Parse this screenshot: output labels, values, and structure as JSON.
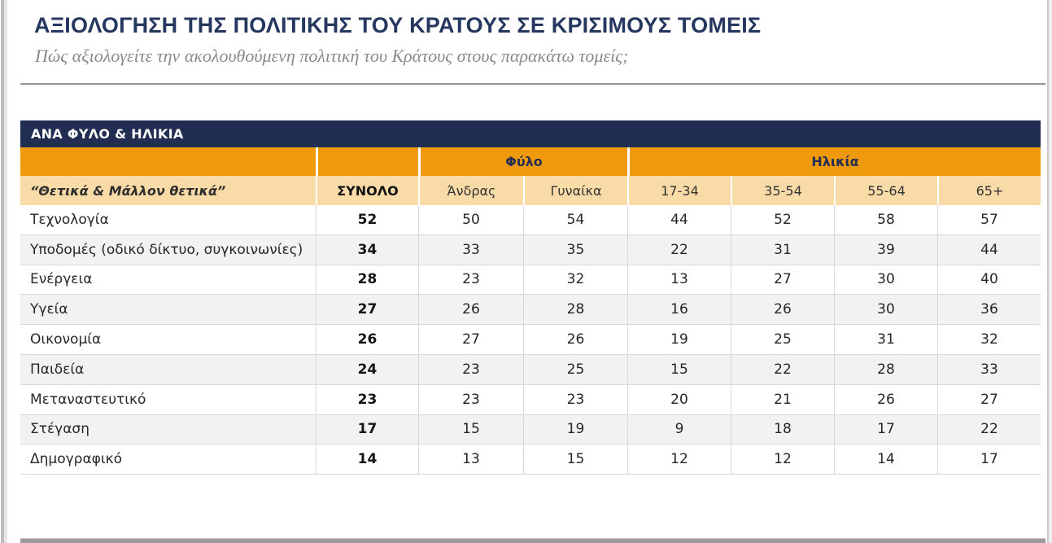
{
  "header": {
    "title": "ΑΞΙΟΛΟΓΗΣΗ ΤΗΣ ΠΟΛΙΤΙΚΗΣ ΤΟΥ ΚΡΑΤΟΥΣ ΣΕ ΚΡΙΣΙΜΟΥΣ ΤΟΜΕΙΣ",
    "subtitle": "Πώς αξιολογείτε την ακολουθούμενη πολιτική του Κράτους στους παρακάτω τομείς;"
  },
  "section_bar": {
    "label": "ΑΝΑ ΦΥΛΟ & ΗΛΙΚΙΑ"
  },
  "chart_data": {
    "type": "table",
    "title": "ΑΞΙΟΛΟΓΗΣΗ ΤΗΣ ΠΟΛΙΤΙΚΗΣ ΤΟΥ ΚΡΑΤΟΥΣ ΣΕ ΚΡΙΣΙΜΟΥΣ ΤΟΜΕΙΣ",
    "section": "ΑΝΑ ΦΥΛΟ & ΗΛΙΚΙΑ",
    "measure_label": "“Θετικά & Μάλλον θετικά”",
    "column_groups": [
      {
        "name": "label-spacer",
        "label": "",
        "span": 1
      },
      {
        "name": "total-spacer",
        "label": "",
        "span": 1
      },
      {
        "name": "gender",
        "label": "Φύλο",
        "span": 2
      },
      {
        "name": "age",
        "label": "Ηλικία",
        "span": 4
      }
    ],
    "columns": [
      "ΣΥΝΟΛΟ",
      "Άνδρας",
      "Γυναίκα",
      "17-34",
      "35-54",
      "55-64",
      "65+"
    ],
    "rows": [
      {
        "label": "Τεχνολογία",
        "values": [
          52,
          50,
          54,
          44,
          52,
          58,
          57
        ]
      },
      {
        "label": "Υποδομές (οδικό δίκτυο, συγκοινωνίες)",
        "values": [
          34,
          33,
          35,
          22,
          31,
          39,
          44
        ]
      },
      {
        "label": "Ενέργεια",
        "values": [
          28,
          23,
          32,
          13,
          27,
          30,
          40
        ]
      },
      {
        "label": "Υγεία",
        "values": [
          27,
          26,
          28,
          16,
          26,
          30,
          36
        ]
      },
      {
        "label": "Οικονομία",
        "values": [
          26,
          27,
          26,
          19,
          25,
          31,
          32
        ]
      },
      {
        "label": "Παιδεία",
        "values": [
          24,
          23,
          25,
          15,
          22,
          28,
          33
        ]
      },
      {
        "label": "Μεταναστευτικό",
        "values": [
          23,
          23,
          23,
          20,
          21,
          26,
          27
        ]
      },
      {
        "label": "Στέγαση",
        "values": [
          17,
          15,
          19,
          9,
          18,
          17,
          22
        ]
      },
      {
        "label": "Δημογραφικό",
        "values": [
          14,
          13,
          15,
          12,
          12,
          14,
          17
        ]
      }
    ]
  },
  "colors": {
    "navy_band": "#222D52",
    "orange_header": "#EF990D",
    "light_orange_header": "#F8DBA6",
    "title_text": "#26375F",
    "subtitle_text": "#8A8A8A",
    "row_alt_background": "#F2F2F2",
    "table_border": "#D9D9D9",
    "scrollbar_gray": "#9B9B9B"
  }
}
